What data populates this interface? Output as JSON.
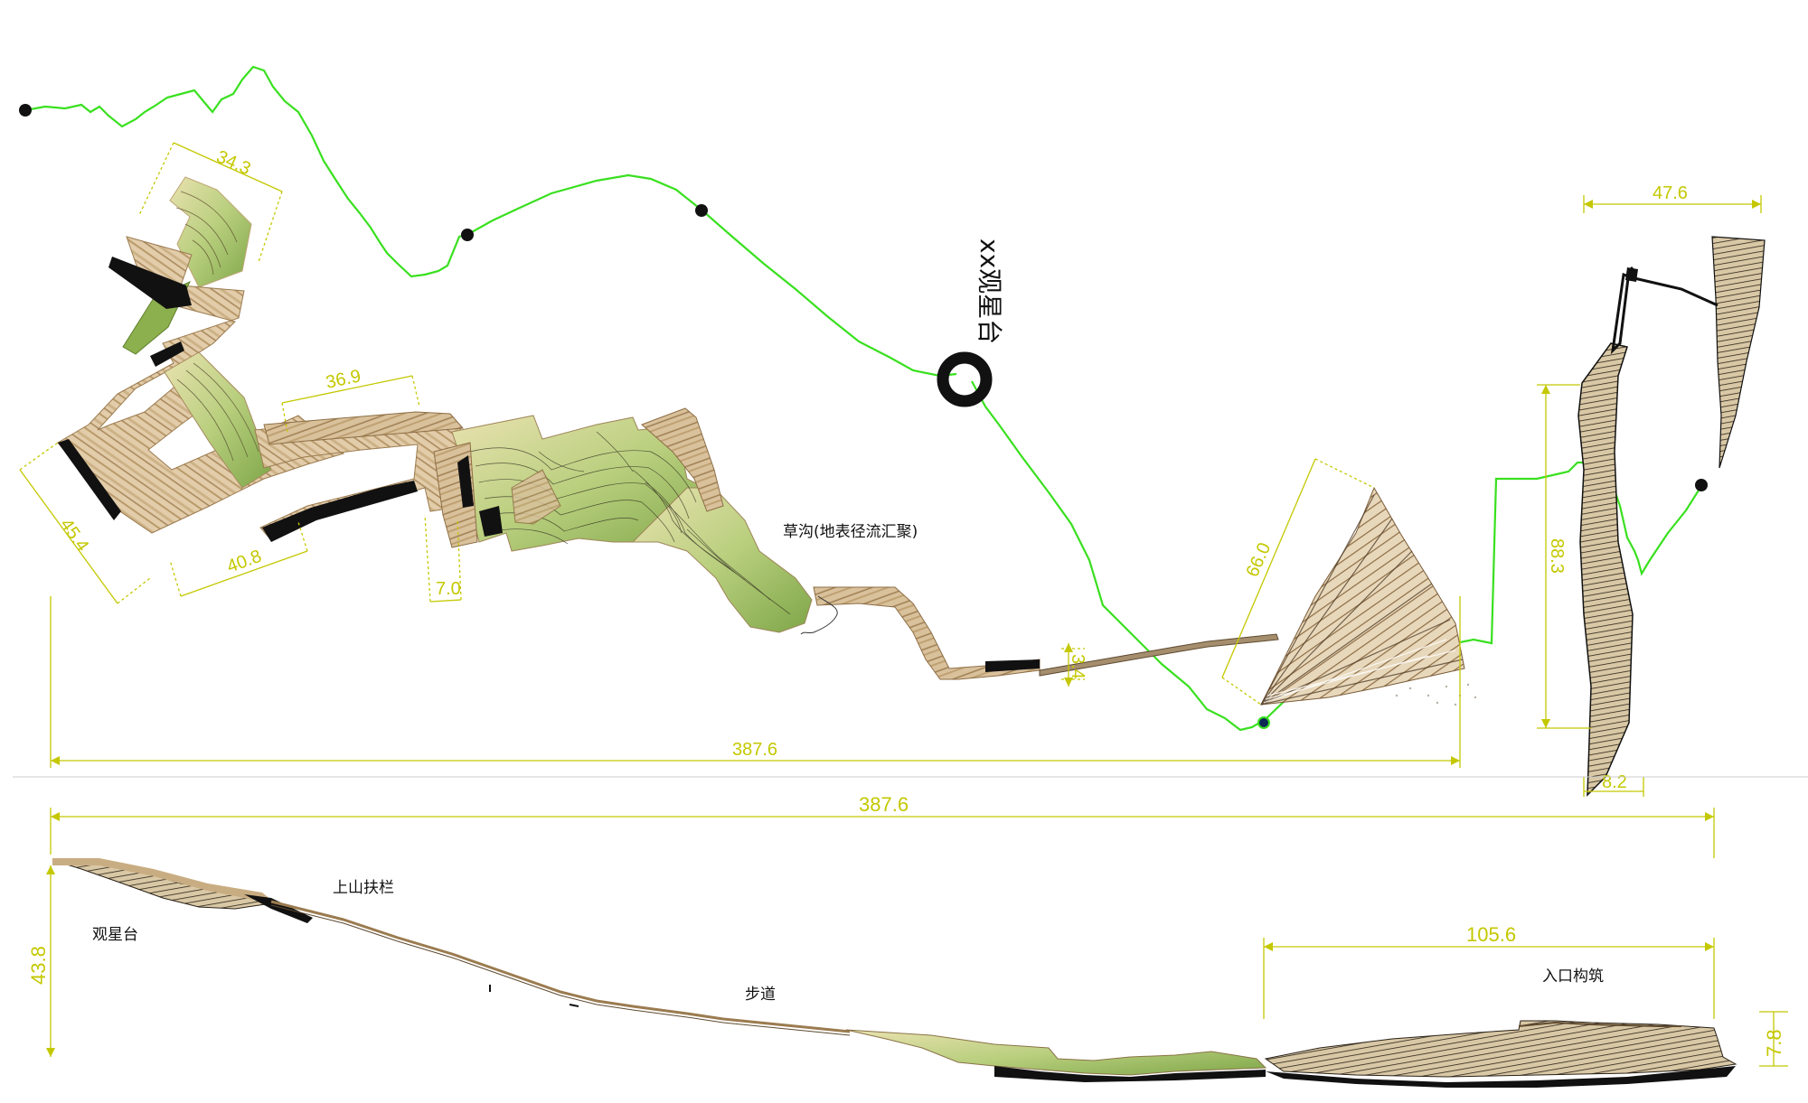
{
  "title": "xx观星台",
  "labels": {
    "grass_ditch": "草沟(地表径流汇聚)",
    "handrail": "上山扶栏",
    "observatory": "观星台",
    "trail": "步道",
    "entrance": "入口构筑"
  },
  "dimensions": {
    "d_34_3": "34.3",
    "d_36_9": "36.9",
    "d_45_4": "45.4",
    "d_40_8": "40.8",
    "d_7_0": "7.0",
    "d_66_0": "66.0",
    "d_3_4": "3.4",
    "d_387_6_plan": "387.6",
    "d_47_6": "47.6",
    "d_88_3": "88.3",
    "d_8_2": "8.2",
    "d_387_6_section": "387.6",
    "d_43_8": "43.8",
    "d_105_6": "105.6",
    "d_7_8": "7.8"
  },
  "colors": {
    "route": "#39e01f",
    "dimension": "#c4c800",
    "wood_light": "#e4cfae",
    "wood_dark": "#a98a5d",
    "grass": "#a9c36a",
    "grass_dark": "#6f9a3a",
    "ink": "#111111"
  }
}
